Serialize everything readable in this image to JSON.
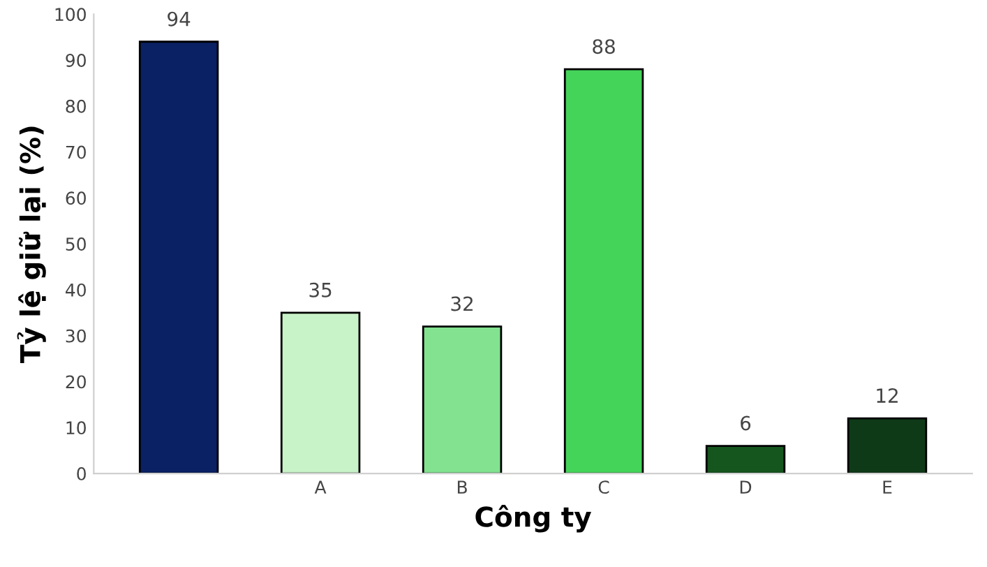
{
  "chart_data": {
    "type": "bar",
    "xlabel": "Công ty",
    "ylabel": "Tỷ lệ giữ lại (%)",
    "categories": [
      null,
      "A",
      "B",
      "C",
      "D",
      "E"
    ],
    "values": [
      94,
      35,
      32,
      88,
      6,
      12
    ],
    "colors": [
      "#0a2263",
      "#c8f2c8",
      "#82e290",
      "#44d45a",
      "#15561f",
      "#0f3a18"
    ],
    "ylim": [
      0,
      100
    ],
    "yticks": [
      0,
      10,
      20,
      30,
      40,
      50,
      60,
      70,
      80,
      90,
      100
    ],
    "data_labels": true,
    "grid": false
  }
}
